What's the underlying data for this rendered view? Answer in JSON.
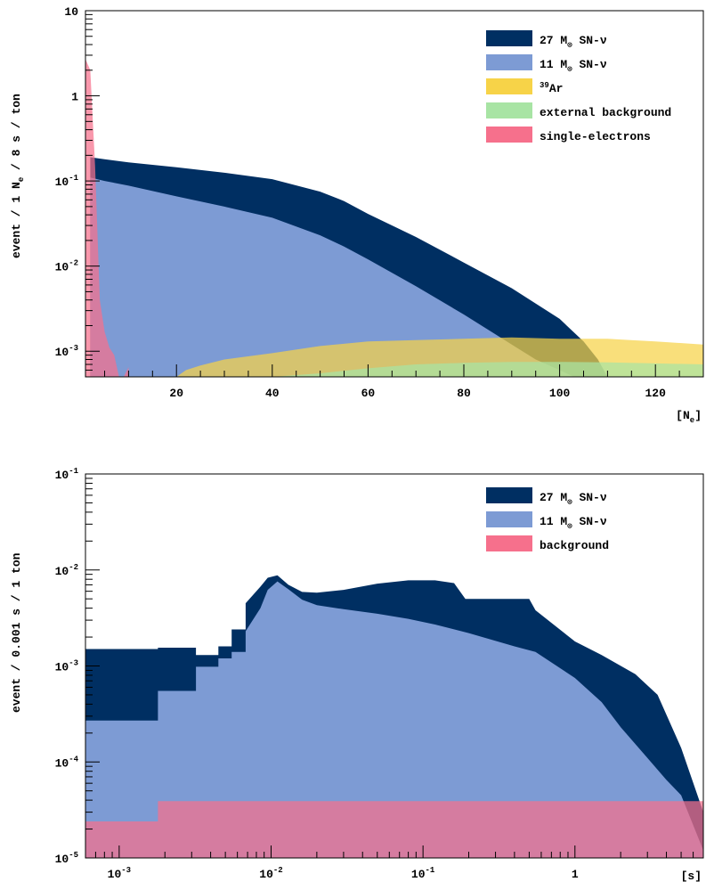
{
  "colors": {
    "sn27": "#002f62",
    "sn11": "#7d9bd4",
    "ar39": "#f7d348",
    "ext": "#a8e4a4",
    "single": "#f6708c",
    "background": "#f6708c"
  },
  "chart_data": [
    {
      "type": "histogram",
      "xlabel": "[N",
      "xlabel_sub": "e",
      "xlabel_close": "]",
      "ylabel": "event / 1 N",
      "ylabel_sub": "e",
      "ylabel_rest": " / 8 s / ton",
      "xlim": [
        1,
        130
      ],
      "ylim": [
        0.0005,
        10
      ],
      "y_log": true,
      "x_log": false,
      "legend_position": "top-right",
      "xticks": [
        20,
        40,
        60,
        80,
        100,
        120
      ],
      "xtick_labels": [
        "20",
        "40",
        "60",
        "80",
        "100",
        "120"
      ],
      "yticks": [
        {
          "v": 0.001,
          "base": "10",
          "exp": "-3"
        },
        {
          "v": 0.01,
          "base": "10",
          "exp": "-2"
        },
        {
          "v": 0.1,
          "base": "10",
          "exp": "-1"
        },
        {
          "v": 1,
          "base": "1",
          "exp": ""
        },
        {
          "v": 10,
          "base": "10",
          "exp": ""
        }
      ],
      "legend": [
        {
          "pre": "27 M",
          "sub": "⊙",
          "post": " SN-ν",
          "color_key": "sn27"
        },
        {
          "pre": "11 M",
          "sub": "⊙",
          "post": " SN-ν",
          "color_key": "sn11"
        },
        {
          "sup": "39",
          "post": "Ar",
          "color_key": "ar39"
        },
        {
          "post": "external background",
          "color_key": "ext"
        },
        {
          "post": "single-electrons",
          "color_key": "single"
        }
      ],
      "series": [
        {
          "name": "27 M⊙ SN-ν",
          "color_key": "sn27",
          "x": [
            2,
            5,
            10,
            20,
            30,
            40,
            50,
            55,
            60,
            70,
            80,
            90,
            100,
            105,
            108,
            110
          ],
          "y": [
            0.19,
            0.18,
            0.165,
            0.145,
            0.125,
            0.105,
            0.075,
            0.058,
            0.041,
            0.022,
            0.011,
            0.0055,
            0.0024,
            0.0013,
            0.0008,
            0.0005
          ]
        },
        {
          "name": "11 M⊙ SN-ν",
          "color_key": "sn11",
          "x": [
            2,
            5,
            10,
            20,
            30,
            40,
            50,
            55,
            60,
            70,
            80,
            90,
            95,
            100,
            103
          ],
          "y": [
            0.11,
            0.1,
            0.088,
            0.066,
            0.05,
            0.037,
            0.023,
            0.017,
            0.012,
            0.0058,
            0.0027,
            0.0012,
            0.0008,
            0.0006,
            0.0005
          ]
        },
        {
          "name": "39Ar",
          "color_key": "ar39",
          "x": [
            20,
            22,
            25,
            30,
            40,
            50,
            60,
            70,
            80,
            90,
            100,
            110,
            120,
            130
          ],
          "y": [
            0.0005,
            0.0006,
            0.00068,
            0.0008,
            0.00095,
            0.00115,
            0.0013,
            0.00135,
            0.0014,
            0.00145,
            0.0014,
            0.0014,
            0.0013,
            0.0012
          ]
        },
        {
          "name": "external background",
          "color_key": "ext",
          "x": [
            40,
            50,
            60,
            70,
            80,
            90,
            100,
            110,
            120,
            130
          ],
          "y": [
            0.0005,
            0.00055,
            0.00063,
            0.0007,
            0.00073,
            0.00075,
            0.00075,
            0.00074,
            0.00072,
            0.0007
          ]
        },
        {
          "name": "single-electrons",
          "color_key": "single",
          "x": [
            1,
            2,
            3,
            4,
            5,
            6,
            7,
            8,
            9,
            10
          ],
          "y": [
            2.7,
            2.0,
            0.15,
            0.004,
            0.0017,
            0.0011,
            0.0009,
            0.0005,
            0.0005,
            0.00065
          ]
        }
      ]
    },
    {
      "type": "histogram",
      "xlabel": "[s]",
      "ylabel": "event / 0.001 s / 1 ton",
      "xlim": [
        0.0006,
        7
      ],
      "ylim": [
        1e-05,
        0.1
      ],
      "y_log": true,
      "x_log": true,
      "legend_position": "top-right",
      "xticks": [
        {
          "v": 0.001,
          "base": "10",
          "exp": "-3"
        },
        {
          "v": 0.01,
          "base": "10",
          "exp": "-2"
        },
        {
          "v": 0.1,
          "base": "10",
          "exp": "-1"
        },
        {
          "v": 1,
          "base": "1",
          "exp": ""
        }
      ],
      "yticks": [
        {
          "v": 1e-05,
          "base": "10",
          "exp": "-5"
        },
        {
          "v": 0.0001,
          "base": "10",
          "exp": "-4"
        },
        {
          "v": 0.001,
          "base": "10",
          "exp": "-3"
        },
        {
          "v": 0.01,
          "base": "10",
          "exp": "-2"
        },
        {
          "v": 0.1,
          "base": "10",
          "exp": "-1"
        }
      ],
      "legend": [
        {
          "pre": "27 M",
          "sub": "⊙",
          "post": " SN-ν",
          "color_key": "sn27"
        },
        {
          "pre": "11 M",
          "sub": "⊙",
          "post": " SN-ν",
          "color_key": "sn11"
        },
        {
          "post": "background",
          "color_key": "background"
        }
      ],
      "series": [
        {
          "name": "27 M⊙ SN-ν",
          "color_key": "sn27",
          "x": [
            0.0006,
            0.0018,
            0.0018,
            0.0032,
            0.0032,
            0.0045,
            0.0045,
            0.0055,
            0.0055,
            0.0068,
            0.0068,
            0.0085,
            0.0095,
            0.011,
            0.013,
            0.016,
            0.02,
            0.03,
            0.05,
            0.08,
            0.12,
            0.16,
            0.19,
            0.5,
            0.55,
            1.0,
            1.5,
            2.5,
            3.5,
            5.0,
            7.0
          ],
          "y": [
            0.0015,
            0.0015,
            0.00155,
            0.00155,
            0.0013,
            0.0013,
            0.0016,
            0.0016,
            0.0024,
            0.0024,
            0.0045,
            0.0067,
            0.0083,
            0.0088,
            0.007,
            0.0059,
            0.0058,
            0.0062,
            0.0072,
            0.0078,
            0.0078,
            0.0073,
            0.005,
            0.005,
            0.0038,
            0.0018,
            0.0013,
            0.00082,
            0.0005,
            0.00014,
            3e-05
          ]
        },
        {
          "name": "11 M⊙ SN-ν",
          "color_key": "sn11",
          "x": [
            0.0006,
            0.0018,
            0.0018,
            0.0032,
            0.0032,
            0.0045,
            0.0045,
            0.0055,
            0.0055,
            0.0068,
            0.0068,
            0.0085,
            0.0095,
            0.011,
            0.013,
            0.016,
            0.02,
            0.03,
            0.05,
            0.08,
            0.12,
            0.2,
            0.4,
            0.55,
            1.0,
            1.5,
            2.0,
            3.0,
            4.0,
            5.0,
            7.0
          ],
          "y": [
            0.00027,
            0.00027,
            0.00055,
            0.00055,
            0.00098,
            0.00098,
            0.0012,
            0.0012,
            0.0014,
            0.0014,
            0.0023,
            0.004,
            0.0062,
            0.0076,
            0.0063,
            0.0049,
            0.0043,
            0.0039,
            0.0035,
            0.0031,
            0.0027,
            0.0022,
            0.0016,
            0.0014,
            0.00075,
            0.00042,
            0.00023,
            0.00011,
            6.5e-05,
            4.5e-05,
            1.2e-05
          ]
        },
        {
          "name": "background",
          "color_key": "background",
          "x": [
            0.0006,
            0.0018,
            0.0018,
            0.007,
            0.1,
            1.0,
            7.0
          ],
          "y": [
            2.4e-05,
            2.4e-05,
            3.9e-05,
            3.9e-05,
            3.9e-05,
            3.9e-05,
            3.9e-05
          ]
        }
      ]
    }
  ]
}
